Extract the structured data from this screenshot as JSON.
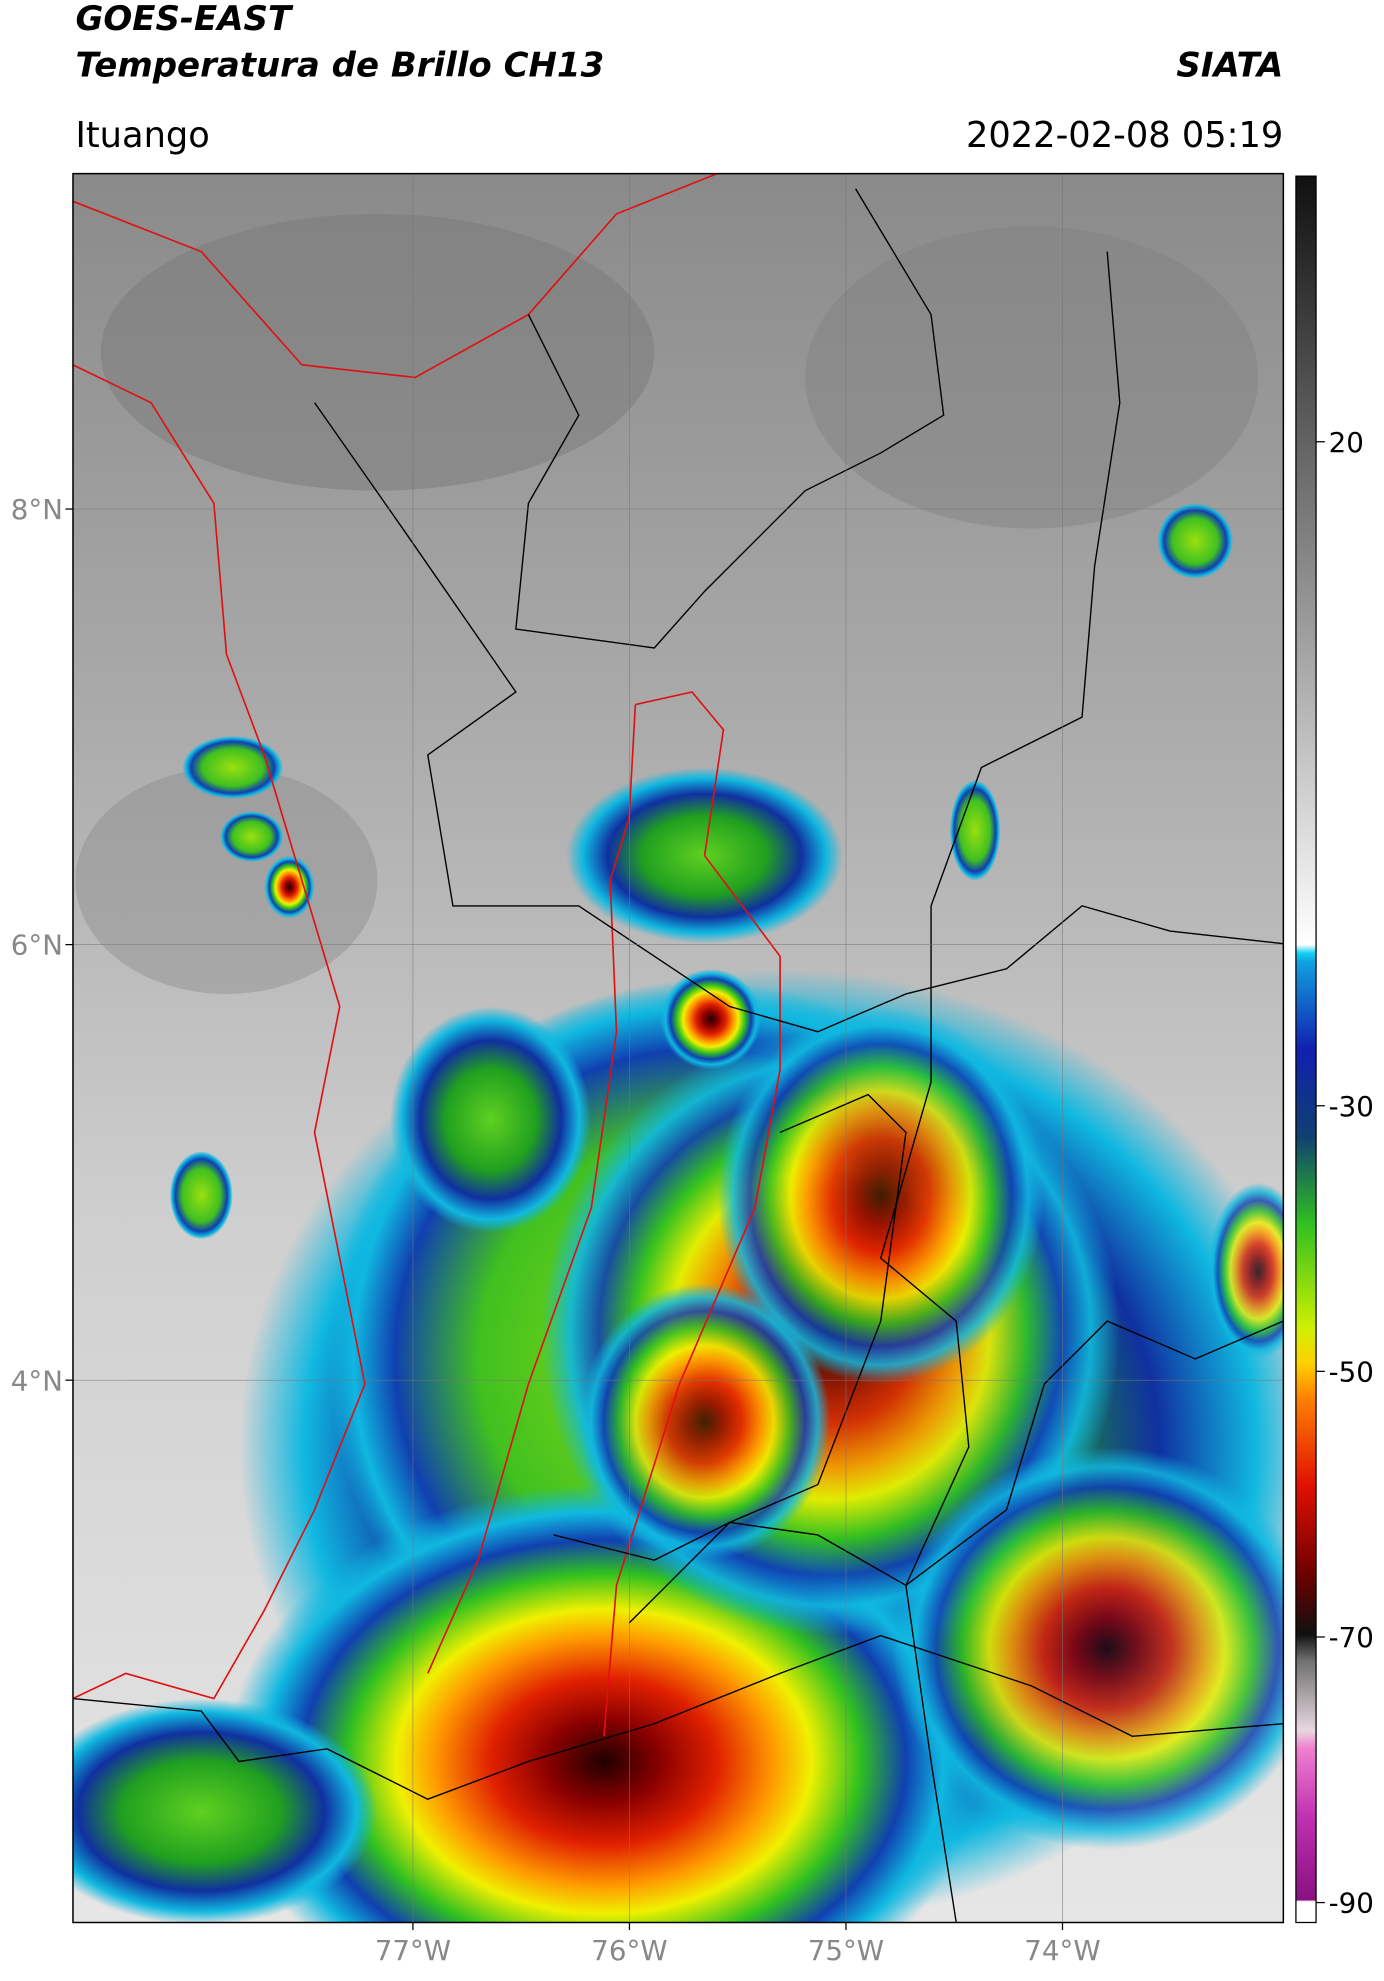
{
  "header": {
    "title": "GOES-EAST",
    "subtitle": "Temperatura de Brillo CH13",
    "org": "SIATA",
    "region": "Ituango",
    "datetime": "2022-02-08 05:19"
  },
  "map": {
    "xlim": [
      -78.57,
      -72.98
    ],
    "ylim": [
      1.51,
      9.54
    ],
    "xticks": [
      {
        "value": -77,
        "label": "77°W"
      },
      {
        "value": -76,
        "label": "76°W"
      },
      {
        "value": -75,
        "label": "75°W"
      },
      {
        "value": -74,
        "label": "74°W"
      }
    ],
    "yticks": [
      {
        "value": 8,
        "label": "8°N"
      },
      {
        "value": 6,
        "label": "6°N"
      },
      {
        "value": 4,
        "label": "4°N"
      }
    ],
    "grid": true
  },
  "colorbar": {
    "lim": [
      -91.5,
      40
    ],
    "ticks": [
      20,
      -30,
      -50,
      -70,
      -90
    ]
  }
}
